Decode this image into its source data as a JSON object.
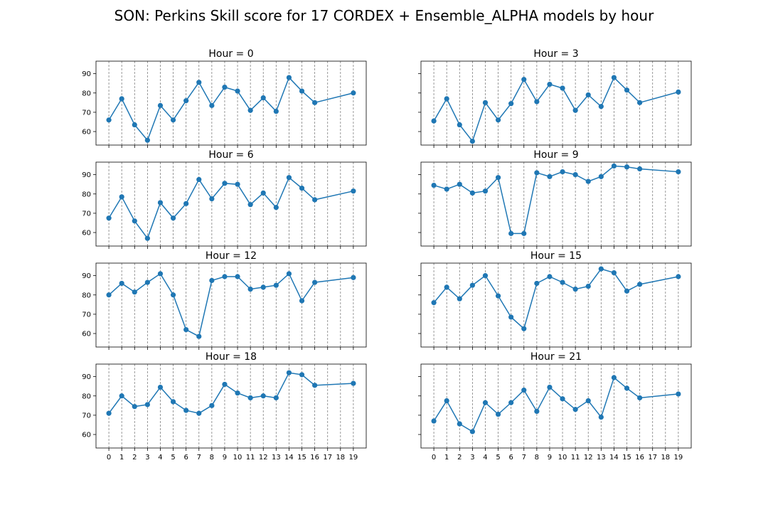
{
  "figure": {
    "title": "SON: Perkins Skill score for 17 CORDEX + Ensemble_ALPHA models by hour"
  },
  "chart_data": [
    {
      "type": "line",
      "title": "Hour = 0",
      "x": [
        0,
        1,
        2,
        3,
        4,
        5,
        6,
        7,
        8,
        9,
        10,
        11,
        12,
        13,
        14,
        15,
        16,
        19
      ],
      "y": [
        66,
        77,
        63.5,
        55.5,
        73.5,
        66,
        76,
        85.5,
        73.5,
        83,
        81,
        71,
        77.5,
        70.5,
        88,
        81,
        75,
        80
      ],
      "xticks": [
        0,
        1,
        2,
        3,
        4,
        5,
        6,
        7,
        8,
        9,
        10,
        11,
        12,
        13,
        14,
        15,
        16,
        17,
        18,
        19
      ],
      "yticks": [
        60,
        70,
        80,
        90
      ],
      "ylim": [
        53,
        96.5
      ],
      "grid": "x-dashed",
      "color": "#1f77b4"
    },
    {
      "type": "line",
      "title": "Hour = 3",
      "x": [
        0,
        1,
        2,
        3,
        4,
        5,
        6,
        7,
        8,
        9,
        10,
        11,
        12,
        13,
        14,
        15,
        16,
        19
      ],
      "y": [
        65.5,
        77,
        63.5,
        55,
        75,
        66,
        74.5,
        87,
        75.5,
        84.5,
        82.5,
        71,
        79,
        73,
        88,
        81.5,
        75,
        80.5
      ],
      "xticks": [
        0,
        1,
        2,
        3,
        4,
        5,
        6,
        7,
        8,
        9,
        10,
        11,
        12,
        13,
        14,
        15,
        16,
        17,
        18,
        19
      ],
      "yticks": [
        60,
        70,
        80,
        90
      ],
      "ylim": [
        53,
        96.5
      ],
      "grid": "x-dashed",
      "color": "#1f77b4"
    },
    {
      "type": "line",
      "title": "Hour = 6",
      "x": [
        0,
        1,
        2,
        3,
        4,
        5,
        6,
        7,
        8,
        9,
        10,
        11,
        12,
        13,
        14,
        15,
        16,
        19
      ],
      "y": [
        67.5,
        78.5,
        66,
        57,
        75.5,
        67.5,
        75,
        87.5,
        77.5,
        85.5,
        85,
        74.5,
        80.5,
        73,
        88.5,
        83,
        77,
        81.5
      ],
      "xticks": [
        0,
        1,
        2,
        3,
        4,
        5,
        6,
        7,
        8,
        9,
        10,
        11,
        12,
        13,
        14,
        15,
        16,
        17,
        18,
        19
      ],
      "yticks": [
        60,
        70,
        80,
        90
      ],
      "ylim": [
        53,
        96.5
      ],
      "grid": "x-dashed",
      "color": "#1f77b4"
    },
    {
      "type": "line",
      "title": "Hour = 9",
      "x": [
        0,
        1,
        2,
        3,
        4,
        5,
        6,
        7,
        8,
        9,
        10,
        11,
        12,
        13,
        14,
        15,
        16,
        19
      ],
      "y": [
        84.5,
        82.5,
        85,
        80.5,
        81.5,
        88.5,
        59.5,
        59.5,
        91,
        89,
        91.5,
        90,
        86.5,
        89,
        94.5,
        94,
        93,
        91.5
      ],
      "xticks": [
        0,
        1,
        2,
        3,
        4,
        5,
        6,
        7,
        8,
        9,
        10,
        11,
        12,
        13,
        14,
        15,
        16,
        17,
        18,
        19
      ],
      "yticks": [
        60,
        70,
        80,
        90
      ],
      "ylim": [
        53,
        96.5
      ],
      "grid": "x-dashed",
      "color": "#1f77b4"
    },
    {
      "type": "line",
      "title": "Hour = 12",
      "x": [
        0,
        1,
        2,
        3,
        4,
        5,
        6,
        7,
        8,
        9,
        10,
        11,
        12,
        13,
        14,
        15,
        16,
        19
      ],
      "y": [
        80,
        86,
        81.5,
        86.5,
        91,
        80,
        62,
        58.5,
        87.5,
        89.5,
        89.5,
        83,
        84,
        85,
        91,
        77,
        86.5,
        89
      ],
      "xticks": [
        0,
        1,
        2,
        3,
        4,
        5,
        6,
        7,
        8,
        9,
        10,
        11,
        12,
        13,
        14,
        15,
        16,
        17,
        18,
        19
      ],
      "yticks": [
        60,
        70,
        80,
        90
      ],
      "ylim": [
        53,
        96.5
      ],
      "grid": "x-dashed",
      "color": "#1f77b4"
    },
    {
      "type": "line",
      "title": "Hour = 15",
      "x": [
        0,
        1,
        2,
        3,
        4,
        5,
        6,
        7,
        8,
        9,
        10,
        11,
        12,
        13,
        14,
        15,
        16,
        19
      ],
      "y": [
        76,
        84,
        78,
        85,
        90,
        79.5,
        68.5,
        62.5,
        86,
        89.5,
        86.5,
        83,
        84.5,
        93.5,
        91.5,
        82,
        85.5,
        89.5
      ],
      "xticks": [
        0,
        1,
        2,
        3,
        4,
        5,
        6,
        7,
        8,
        9,
        10,
        11,
        12,
        13,
        14,
        15,
        16,
        17,
        18,
        19
      ],
      "yticks": [
        60,
        70,
        80,
        90
      ],
      "ylim": [
        53,
        96.5
      ],
      "grid": "x-dashed",
      "color": "#1f77b4"
    },
    {
      "type": "line",
      "title": "Hour = 18",
      "x": [
        0,
        1,
        2,
        3,
        4,
        5,
        6,
        7,
        8,
        9,
        10,
        11,
        12,
        13,
        14,
        15,
        16,
        19
      ],
      "y": [
        71,
        80,
        74.5,
        75.5,
        84.5,
        77,
        72.5,
        71,
        75,
        86,
        81.5,
        79,
        80,
        79,
        92,
        91,
        85.5,
        86.5
      ],
      "xticks": [
        0,
        1,
        2,
        3,
        4,
        5,
        6,
        7,
        8,
        9,
        10,
        11,
        12,
        13,
        14,
        15,
        16,
        17,
        18,
        19
      ],
      "yticks": [
        60,
        70,
        80,
        90
      ],
      "ylim": [
        53,
        96.5
      ],
      "grid": "x-dashed",
      "color": "#1f77b4"
    },
    {
      "type": "line",
      "title": "Hour = 21",
      "x": [
        0,
        1,
        2,
        3,
        4,
        5,
        6,
        7,
        8,
        9,
        10,
        11,
        12,
        13,
        14,
        15,
        16,
        19
      ],
      "y": [
        67,
        77.5,
        65.5,
        61.5,
        76.5,
        70.5,
        76.5,
        83,
        72,
        84.5,
        78.5,
        73,
        77.5,
        69,
        89.5,
        84,
        79,
        81
      ],
      "xticks": [
        0,
        1,
        2,
        3,
        4,
        5,
        6,
        7,
        8,
        9,
        10,
        11,
        12,
        13,
        14,
        15,
        16,
        17,
        18,
        19
      ],
      "yticks": [
        60,
        70,
        80,
        90
      ],
      "ylim": [
        53,
        96.5
      ],
      "grid": "x-dashed",
      "color": "#1f77b4"
    }
  ]
}
